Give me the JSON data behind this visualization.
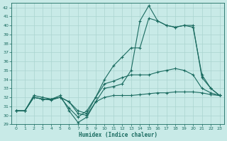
{
  "background_color": "#c8eae7",
  "grid_color": "#aad4d0",
  "line_color": "#1a6b60",
  "xlabel": "Humidex (Indice chaleur)",
  "line1_x": [
    0,
    1,
    2,
    3,
    4,
    5,
    6,
    7,
    8,
    9,
    10,
    11,
    12,
    13,
    14,
    15,
    16,
    17,
    18,
    19,
    20,
    21,
    22,
    23
  ],
  "line1_y": [
    30.5,
    30.5,
    32.2,
    32.0,
    31.8,
    32.2,
    30.5,
    29.2,
    29.8,
    31.5,
    33.0,
    33.2,
    33.5,
    35.0,
    40.5,
    42.2,
    40.5,
    40.0,
    39.8,
    40.0,
    39.8,
    34.5,
    33.0,
    32.2
  ],
  "line2_x": [
    0,
    1,
    2,
    3,
    4,
    5,
    6,
    7,
    8,
    9,
    10,
    11,
    12,
    13,
    14,
    15,
    16,
    17,
    18,
    19,
    20,
    21,
    22,
    23
  ],
  "line2_y": [
    30.5,
    30.5,
    32.0,
    31.8,
    31.7,
    32.0,
    30.8,
    29.8,
    30.5,
    32.0,
    34.0,
    35.5,
    36.5,
    37.5,
    37.5,
    40.8,
    40.5,
    40.0,
    39.8,
    40.0,
    40.0,
    34.2,
    33.0,
    32.2
  ],
  "line3_x": [
    0,
    1,
    2,
    3,
    4,
    5,
    6,
    7,
    8,
    9,
    10,
    11,
    12,
    13,
    14,
    15,
    16,
    17,
    18,
    19,
    20,
    21,
    22,
    23
  ],
  "line3_y": [
    30.5,
    30.5,
    32.0,
    31.8,
    31.8,
    32.0,
    31.5,
    30.5,
    30.2,
    32.0,
    33.5,
    33.8,
    34.2,
    34.5,
    34.5,
    34.5,
    34.8,
    35.0,
    35.2,
    35.0,
    34.5,
    33.0,
    32.5,
    32.2
  ],
  "line4_x": [
    0,
    1,
    2,
    3,
    4,
    5,
    6,
    7,
    8,
    9,
    10,
    11,
    12,
    13,
    14,
    15,
    16,
    17,
    18,
    19,
    20,
    21,
    22,
    23
  ],
  "line4_y": [
    30.5,
    30.5,
    32.0,
    31.8,
    31.8,
    32.0,
    31.5,
    30.2,
    30.0,
    31.5,
    32.0,
    32.2,
    32.2,
    32.2,
    32.3,
    32.4,
    32.5,
    32.5,
    32.6,
    32.6,
    32.6,
    32.5,
    32.3,
    32.2
  ],
  "yticks": [
    29,
    30,
    31,
    32,
    33,
    34,
    35,
    36,
    37,
    38,
    39,
    40,
    41,
    42
  ],
  "xticks": [
    0,
    1,
    2,
    3,
    4,
    5,
    6,
    7,
    8,
    9,
    10,
    11,
    12,
    13,
    14,
    15,
    16,
    17,
    18,
    19,
    20,
    21,
    22,
    23
  ],
  "xlim": [
    -0.5,
    23.5
  ],
  "ylim": [
    29,
    42.5
  ]
}
